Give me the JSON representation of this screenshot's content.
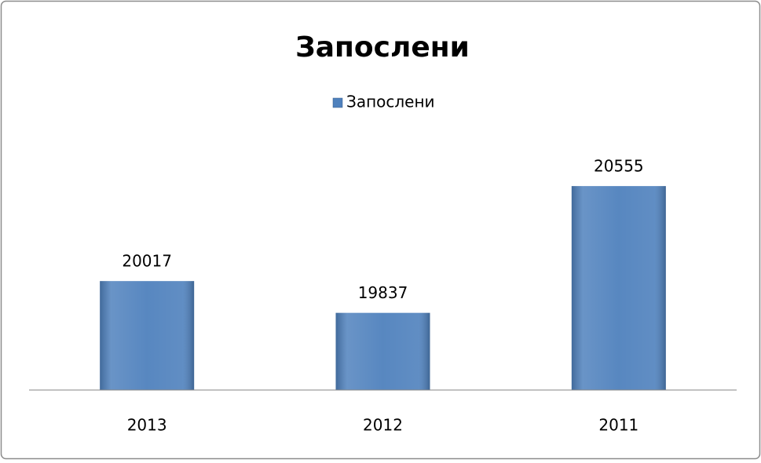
{
  "chart_data": {
    "type": "bar",
    "title": "Запослени",
    "categories": [
      "2013",
      "2012",
      "2011"
    ],
    "series": [
      {
        "name": "Запослени",
        "color": "#4f81bd",
        "values": [
          20017,
          19837,
          20555
        ]
      }
    ],
    "ylim": [
      19400,
      20800
    ],
    "legend": "top",
    "data_labels": true
  }
}
